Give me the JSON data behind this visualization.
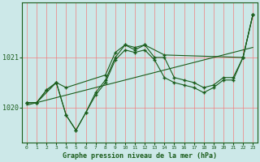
{
  "title": "Graphe pression niveau de la mer (hPa)",
  "background_color": "#cce8e8",
  "grid_color": "#f08080",
  "line_color": "#1a5c1a",
  "ylim": [
    1019.3,
    1022.1
  ],
  "yticks": [
    1020,
    1021
  ],
  "ytick_labels": [
    "1020",
    "1021"
  ],
  "xlim": [
    -0.5,
    23.5
  ],
  "xticks": [
    0,
    1,
    2,
    3,
    4,
    5,
    6,
    7,
    8,
    9,
    10,
    11,
    12,
    13,
    14,
    15,
    16,
    17,
    18,
    19,
    20,
    21,
    22,
    23
  ],
  "s1_x": [
    0,
    1,
    2,
    3,
    4,
    5,
    6,
    7,
    8,
    9,
    10,
    11,
    12,
    13,
    14,
    15,
    16,
    17,
    18,
    19,
    20,
    21,
    22,
    23
  ],
  "s1_y": [
    1020.1,
    1020.1,
    1020.35,
    1020.5,
    1019.85,
    1019.55,
    1019.9,
    1020.3,
    1020.55,
    1021.0,
    1021.25,
    1021.15,
    1021.25,
    1021.0,
    1021.0,
    1020.6,
    1020.55,
    1020.5,
    1020.4,
    1020.45,
    1020.6,
    1020.6,
    1021.0,
    1021.85
  ],
  "s2_x": [
    0,
    1,
    3,
    4,
    8,
    9,
    10,
    11,
    12,
    14,
    22,
    23
  ],
  "s2_y": [
    1020.1,
    1020.1,
    1020.5,
    1020.4,
    1020.65,
    1021.1,
    1021.25,
    1021.2,
    1021.25,
    1021.05,
    1021.0,
    1021.85
  ],
  "s3_x": [
    0,
    1,
    2,
    3,
    4,
    5,
    6,
    7,
    8,
    9,
    10,
    11,
    12,
    13,
    14,
    15,
    16,
    17,
    18,
    19,
    20,
    21,
    22,
    23
  ],
  "s3_y": [
    1020.1,
    1020.1,
    1020.35,
    1020.5,
    1019.85,
    1019.55,
    1019.9,
    1020.25,
    1020.5,
    1020.95,
    1021.15,
    1021.1,
    1021.15,
    1020.95,
    1020.6,
    1020.5,
    1020.45,
    1020.4,
    1020.3,
    1020.4,
    1020.55,
    1020.55,
    1021.0,
    1021.85
  ],
  "trend_x": [
    0,
    23
  ],
  "trend_y": [
    1020.05,
    1021.2
  ]
}
